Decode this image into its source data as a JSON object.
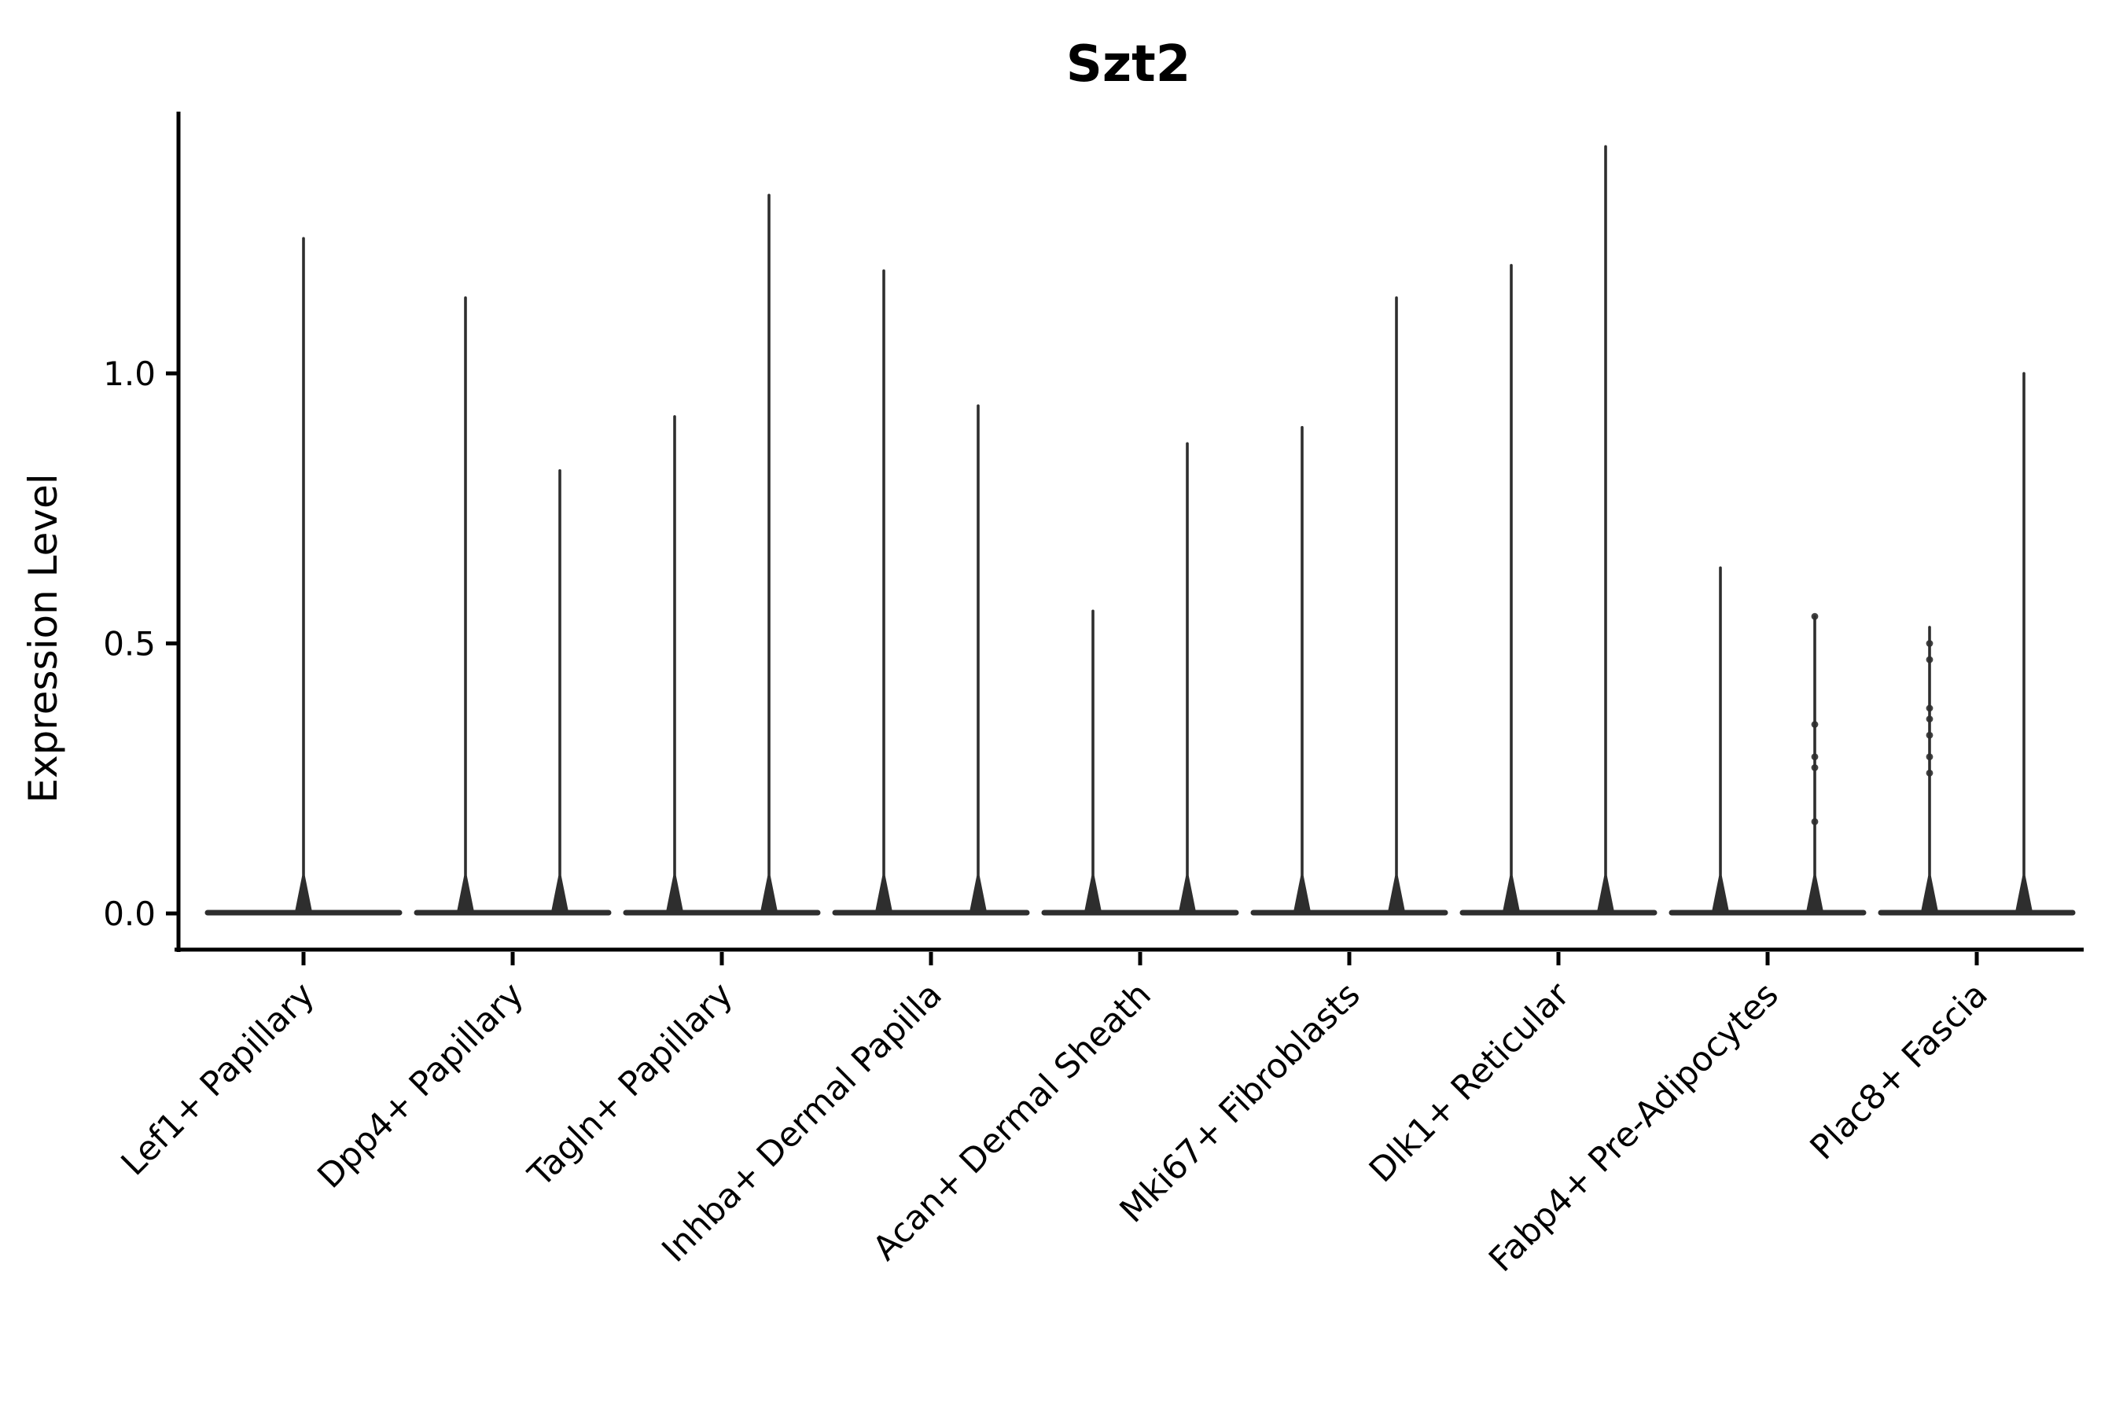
{
  "figure": {
    "background": "#ffffff"
  },
  "chart_data": {
    "type": "violin",
    "title": "Szt2",
    "xlabel": "",
    "ylabel": "Expression Level",
    "legend": "none",
    "grid": false,
    "violin_color": "#2e2e2e",
    "axis_color": "#000000",
    "text_color": "#000000",
    "ylim": [
      -0.07,
      1.49
    ],
    "yticks": {
      "labels": [
        "0.0",
        "0.5",
        "1.0"
      ],
      "values": [
        0.0,
        0.5,
        1.0
      ]
    },
    "categories": [
      "Lef1+ Papillary",
      "Dpp4+ Papillary",
      "Tagln+ Papillary",
      "Inhba+ Dermal Papilla",
      "Acan+ Dermal Sheath",
      "Mki67+ Fibroblasts",
      "Dlk1+ Reticular",
      "Fabp4+ Pre-Adipocytes",
      "Plac8+ Fascia"
    ],
    "series": [
      {
        "category": "Lef1+ Papillary",
        "violins": [
          {
            "position": "center",
            "max": 1.25
          }
        ]
      },
      {
        "category": "Dpp4+ Papillary",
        "violins": [
          {
            "position": "left",
            "max": 1.14
          },
          {
            "position": "right",
            "max": 0.82
          }
        ]
      },
      {
        "category": "Tagln+ Papillary",
        "violins": [
          {
            "position": "left",
            "max": 0.92
          },
          {
            "position": "right",
            "max": 1.33
          }
        ]
      },
      {
        "category": "Inhba+ Dermal Papilla",
        "violins": [
          {
            "position": "left",
            "max": 1.19
          },
          {
            "position": "right",
            "max": 0.94
          }
        ]
      },
      {
        "category": "Acan+ Dermal Sheath",
        "violins": [
          {
            "position": "left",
            "max": 0.56
          },
          {
            "position": "right",
            "max": 0.87
          }
        ]
      },
      {
        "category": "Mki67+ Fibroblasts",
        "violins": [
          {
            "position": "left",
            "max": 0.9
          },
          {
            "position": "right",
            "max": 1.14
          }
        ]
      },
      {
        "category": "Dlk1+ Reticular",
        "violins": [
          {
            "position": "left",
            "max": 1.2
          },
          {
            "position": "right",
            "max": 1.42
          }
        ]
      },
      {
        "category": "Fabp4+ Pre-Adipocytes",
        "violins": [
          {
            "position": "left",
            "max": 0.64
          },
          {
            "position": "right",
            "max": 0.55,
            "points": [
              0.55,
              0.35,
              0.29,
              0.27,
              0.17
            ]
          }
        ]
      },
      {
        "category": "Plac8+ Fascia",
        "violins": [
          {
            "position": "left",
            "max": 0.53,
            "points": [
              0.5,
              0.47,
              0.38,
              0.36,
              0.33,
              0.29,
              0.26
            ]
          },
          {
            "position": "right",
            "max": 1.0
          }
        ]
      }
    ]
  }
}
